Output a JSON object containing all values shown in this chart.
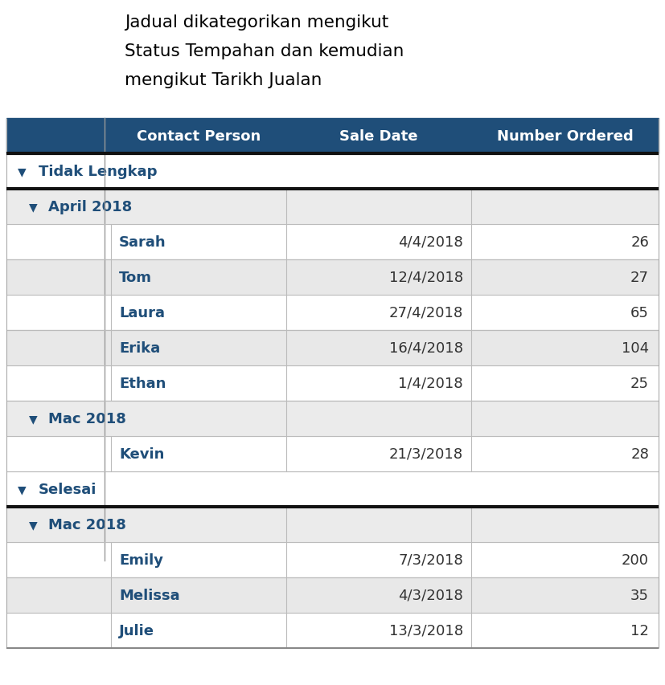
{
  "title_lines": [
    "Jadual dikategorikan mengikut",
    "Status Tempahan dan kemudian",
    "mengikut Tarikh Jualan"
  ],
  "header_bg": "#1F4E79",
  "header_text_color": "#FFFFFF",
  "header_cols": [
    "Contact Person",
    "Sale Date",
    "Number Ordered"
  ],
  "category1_text": "#1F4E79",
  "subcat_text": "#1F4E79",
  "data_text_color": "#1F4E79",
  "light_border": "#BBBBBB",
  "rows": [
    {
      "type": "category1",
      "label": "Tidak Lengkap",
      "col2": "",
      "col3": "",
      "thick_below": true
    },
    {
      "type": "subcat",
      "label": "April 2018",
      "col2": "",
      "col3": "",
      "thick_below": false
    },
    {
      "type": "data",
      "col1": "Sarah",
      "col2": "4/4/2018",
      "col3": "26",
      "stripe": 0
    },
    {
      "type": "data",
      "col1": "Tom",
      "col2": "12/4/2018",
      "col3": "27",
      "stripe": 1
    },
    {
      "type": "data",
      "col1": "Laura",
      "col2": "27/4/2018",
      "col3": "65",
      "stripe": 0
    },
    {
      "type": "data",
      "col1": "Erika",
      "col2": "16/4/2018",
      "col3": "104",
      "stripe": 1
    },
    {
      "type": "data",
      "col1": "Ethan",
      "col2": "1/4/2018",
      "col3": "25",
      "stripe": 0
    },
    {
      "type": "subcat",
      "label": "Mac 2018",
      "col2": "",
      "col3": "",
      "thick_below": false
    },
    {
      "type": "data",
      "col1": "Kevin",
      "col2": "21/3/2018",
      "col3": "28",
      "stripe": 0
    },
    {
      "type": "category1",
      "label": "Selesai",
      "col2": "",
      "col3": "",
      "thick_below": true
    },
    {
      "type": "subcat",
      "label": "Mac 2018",
      "col2": "",
      "col3": "",
      "thick_below": false
    },
    {
      "type": "data",
      "col1": "Emily",
      "col2": "7/3/2018",
      "col3": "200",
      "stripe": 0
    },
    {
      "type": "data",
      "col1": "Melissa",
      "col2": "4/3/2018",
      "col3": "35",
      "stripe": 1
    },
    {
      "type": "data",
      "col1": "Julie",
      "col2": "13/3/2018",
      "col3": "12",
      "stripe": 0
    }
  ],
  "fig_width": 8.27,
  "fig_height": 8.54,
  "title_fontsize": 15.5,
  "header_fontsize": 13,
  "row_fontsize": 13
}
